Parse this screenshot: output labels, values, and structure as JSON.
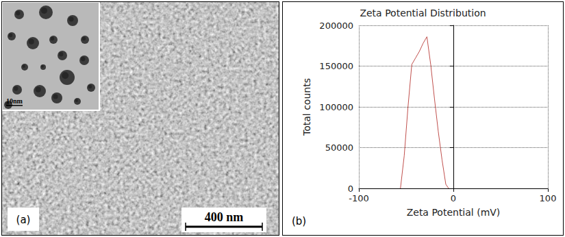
{
  "image_panel": {
    "panel_label": "(a)",
    "scale_bar_label": "400 nm",
    "inset_scale_bar_label": "10nm"
  },
  "chart_data": {
    "type": "line",
    "panel_label": "(b)",
    "title": "Zeta Potential Distribution",
    "x_label": "Zeta Potential (mV)",
    "y_label": "Total counts",
    "x": [
      -56,
      -52,
      -48,
      -44,
      -40,
      -36,
      -32,
      -28,
      -24,
      -20,
      -16,
      -12,
      -8,
      -5
    ],
    "values": [
      0,
      40000,
      100000,
      152000,
      160000,
      168000,
      178000,
      186000,
      152000,
      110000,
      70000,
      35000,
      5000,
      0
    ],
    "color": "#c0504d",
    "xlim": [
      -100,
      100
    ],
    "xticks": [
      -100,
      0,
      100
    ],
    "ylim": [
      0,
      200000
    ],
    "yticks": [
      0,
      50000,
      100000,
      150000,
      200000
    ],
    "grid": true
  }
}
